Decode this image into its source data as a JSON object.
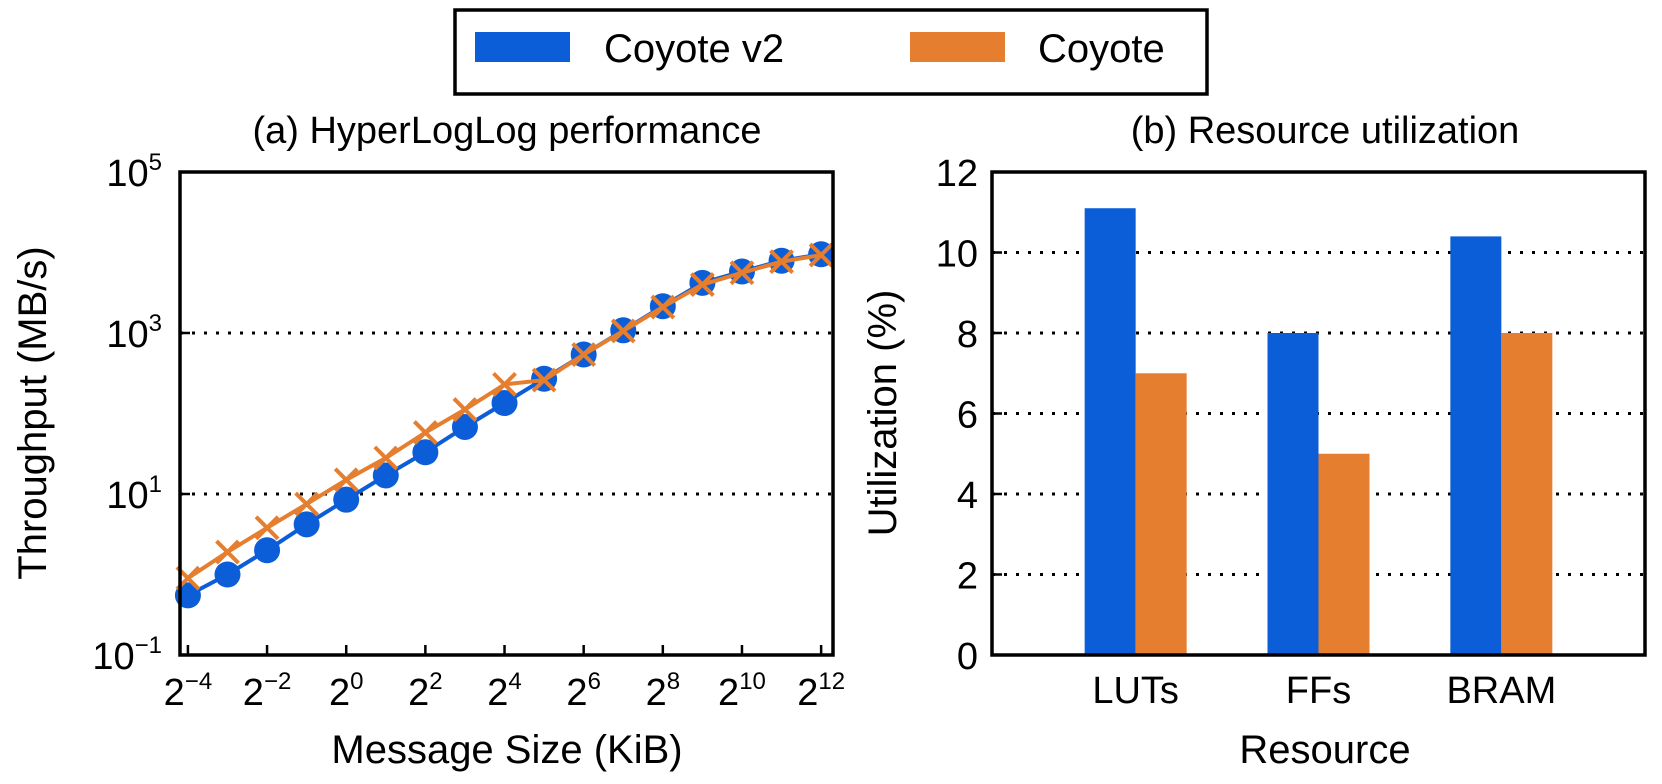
{
  "colors": {
    "coyote_v2": "#0b5ed7",
    "coyote": "#e67e30"
  },
  "legend": {
    "items": [
      "Coyote v2",
      "Coyote"
    ]
  },
  "chart_data": [
    {
      "type": "line",
      "title": "(a) HyperLogLog performance",
      "xlabel": "Message Size (KiB)",
      "ylabel": "Throughput (MB/s)",
      "xscale": "log2",
      "yscale": "log10",
      "x_exponents": [
        -4,
        -3,
        -2,
        -1,
        0,
        1,
        2,
        3,
        4,
        5,
        6,
        7,
        8,
        9,
        10,
        11,
        12
      ],
      "x_tick_exponents": [
        "−4",
        "−2",
        "0",
        "2",
        "4",
        "6",
        "8",
        "10",
        "12"
      ],
      "x_tick_values": [
        -4,
        -2,
        0,
        2,
        4,
        6,
        8,
        10,
        12
      ],
      "y_tick_exponents": [
        "−1",
        "1",
        "3",
        "5"
      ],
      "y_tick_values": [
        -1,
        1,
        3,
        5
      ],
      "xlim": [
        -4.2,
        12.3
      ],
      "ylim_log10": [
        -1,
        5
      ],
      "grid_y_log10": [
        1,
        3
      ],
      "series": [
        {
          "name": "Coyote v2",
          "marker": "circle",
          "values": [
            0.55,
            1.0,
            2.0,
            4.2,
            8.5,
            17,
            33,
            68,
            135,
            270,
            540,
            1080,
            2150,
            4200,
            5800,
            7900,
            9500
          ]
        },
        {
          "name": "Coyote",
          "marker": "x",
          "values": [
            0.9,
            1.9,
            3.8,
            7.5,
            15,
            28,
            58,
            112,
            230,
            260,
            540,
            1060,
            2100,
            4000,
            5600,
            7700,
            9300
          ]
        }
      ]
    },
    {
      "type": "bar",
      "title": "(b) Resource utilization",
      "xlabel": "Resource",
      "ylabel": "Utilization (%)",
      "categories": [
        "LUTs",
        "FFs",
        "BRAM"
      ],
      "ylim": [
        0,
        12
      ],
      "yticks": [
        0,
        2,
        4,
        6,
        8,
        10,
        12
      ],
      "grid_y": [
        2,
        4,
        6,
        8,
        10
      ],
      "series": [
        {
          "name": "Coyote v2",
          "values": [
            11.1,
            8.0,
            10.4
          ]
        },
        {
          "name": "Coyote",
          "values": [
            7.0,
            5.0,
            8.0
          ]
        }
      ]
    }
  ]
}
